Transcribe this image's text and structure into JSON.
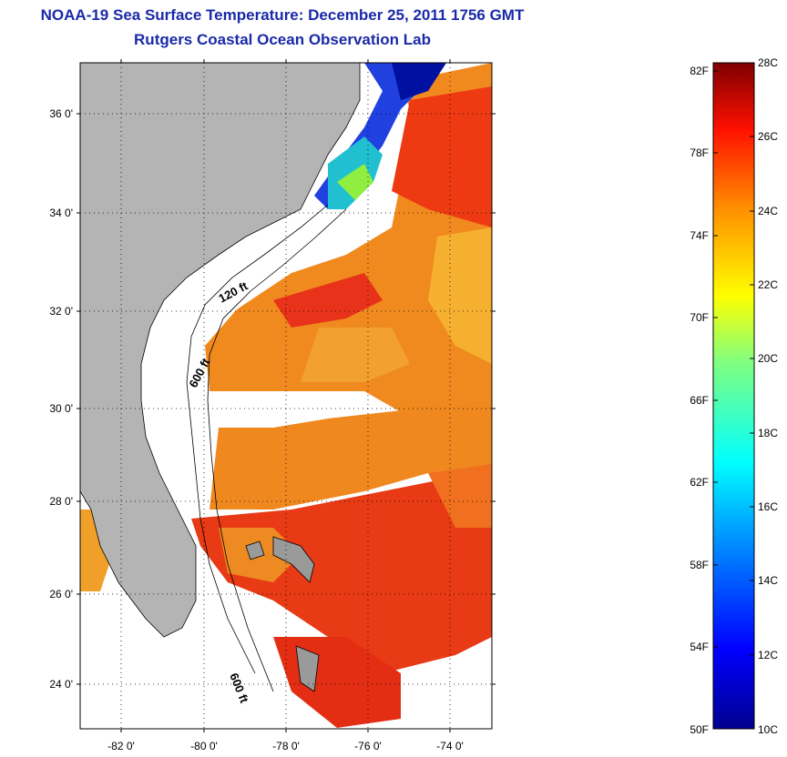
{
  "title": {
    "line1": "NOAA-19 Sea Surface Temperature:  December 25, 2011 1756 GMT",
    "line2": "Rutgers Coastal Ocean Observation Lab"
  },
  "map": {
    "lat_ticks": [
      "36 0'",
      "34 0'",
      "32 0'",
      "30 0'",
      "28 0'",
      "26 0'",
      "24 0'"
    ],
    "lon_ticks": [
      "-82 0'",
      "-80 0'",
      "-78 0'",
      "-76 0'",
      "-74 0'"
    ],
    "contour_labels": [
      "120 ft",
      "600 ft",
      "600 ft"
    ],
    "land_color": "#b4b4b4",
    "cloud_color": "#ffffff"
  },
  "colorbar": {
    "fahrenheit_labels": [
      "82F",
      "78F",
      "74F",
      "70F",
      "66F",
      "62F",
      "58F",
      "54F",
      "50F"
    ],
    "celsius_labels": [
      "28C",
      "26C",
      "24C",
      "22C",
      "20C",
      "18C",
      "16C",
      "14C",
      "12C",
      "10C"
    ],
    "min_c": 10,
    "max_c": 28
  }
}
